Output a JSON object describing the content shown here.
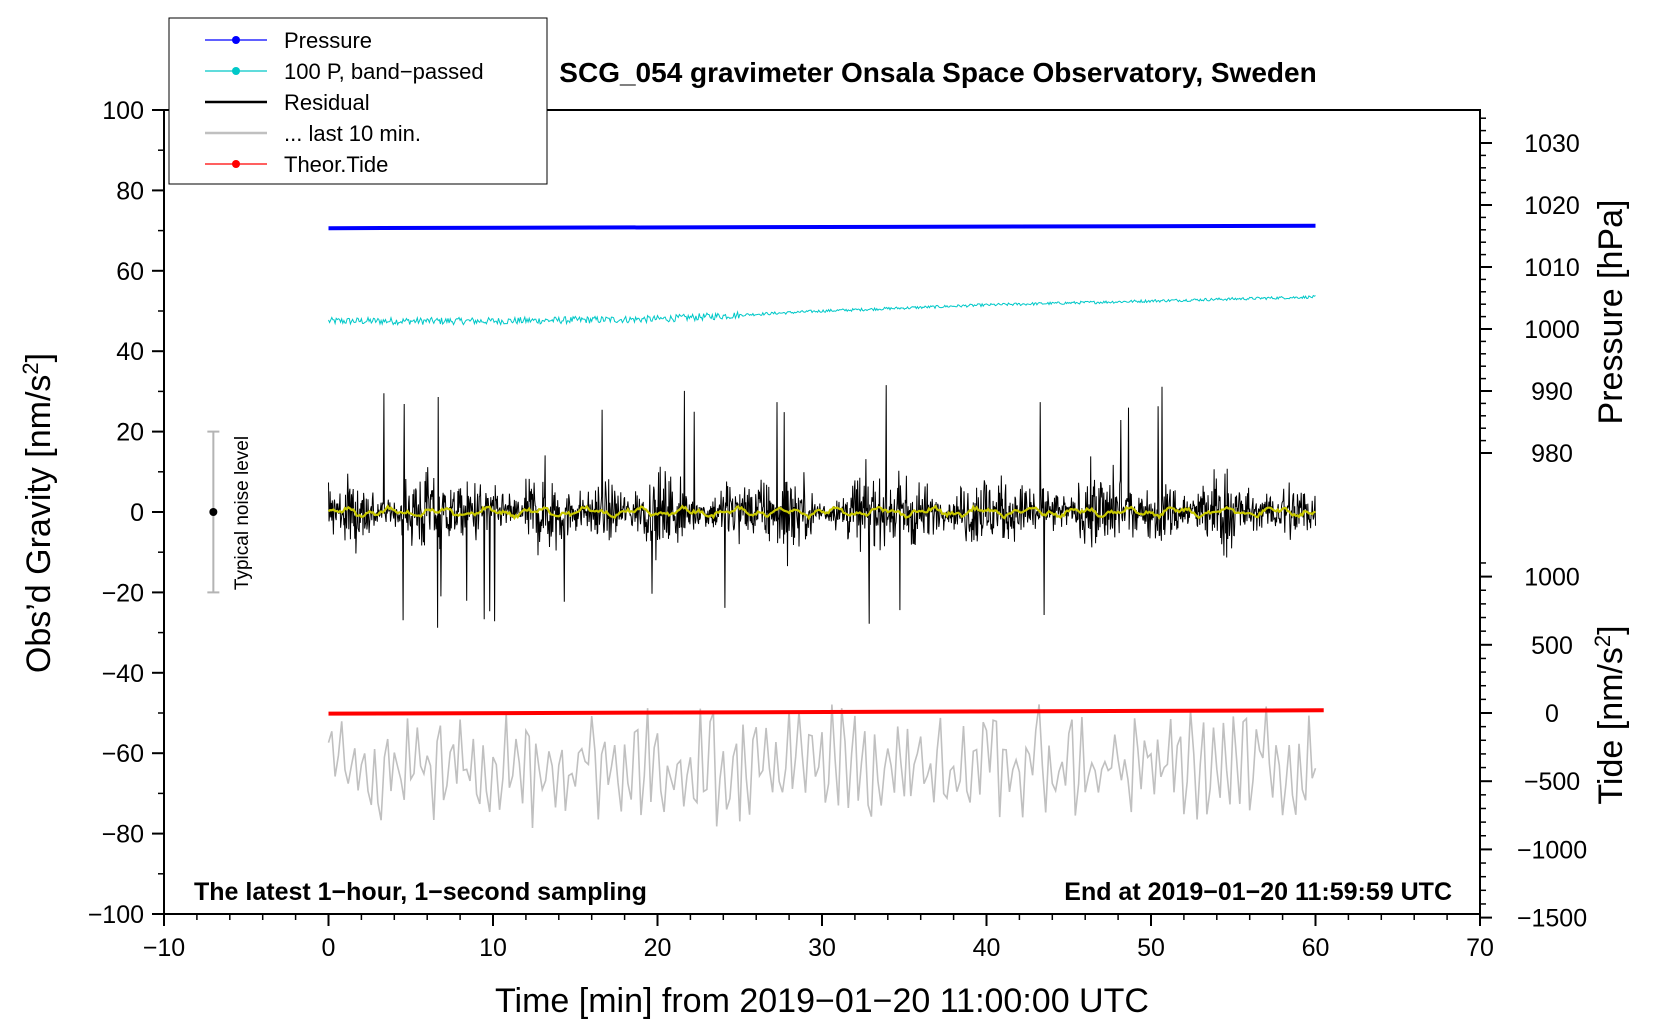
{
  "chart_data": {
    "type": "line",
    "title": "SCG_054 gravimeter Onsala Space Observatory, Sweden",
    "xlabel": "Time [min] from 2019−01−20 11:00:00 UTC",
    "ylabel_left": "Obs’d Gravity [nm/s2]",
    "ylabel_left_parts": [
      "Obs’d Gravity [nm/s",
      "2",
      "]"
    ],
    "ylabel_right_pressure": "Pressure [hPa]",
    "ylabel_right_tide": "Tide [nm/s2]",
    "ylabel_right_tide_parts": [
      "Tide [nm/s",
      "2",
      "]"
    ],
    "xlim": [
      -10,
      70
    ],
    "ylim_left": [
      -100,
      100
    ],
    "x_ticks": [
      -10,
      0,
      10,
      20,
      30,
      40,
      50,
      60,
      70
    ],
    "x_tick_labels": [
      "−10",
      "0",
      "10",
      "20",
      "30",
      "40",
      "50",
      "60",
      "70"
    ],
    "y_ticks_left": [
      -100,
      -80,
      -60,
      -40,
      -20,
      0,
      20,
      40,
      60,
      80,
      100
    ],
    "y_tick_labels_left": [
      "−100",
      "−80",
      "−60",
      "−40",
      "−20",
      "0",
      "20",
      "40",
      "60",
      "80",
      "100"
    ],
    "pressure_ticks": [
      980,
      990,
      1000,
      1010,
      1020,
      1030
    ],
    "pressure_tick_labels": [
      "980",
      "990",
      "1000",
      "1010",
      "1020",
      "1030"
    ],
    "tide_ticks": [
      -1500,
      -1000,
      -500,
      0,
      500,
      1000
    ],
    "tide_tick_labels": [
      "−1500",
      "−1000",
      "−500",
      "0",
      "500",
      "1000"
    ],
    "legend": {
      "position": "top-left",
      "entries": [
        {
          "label": "Pressure",
          "color": "#0000ff",
          "marker": true
        },
        {
          "label": "100 P, band−passed",
          "color": "#00c8c8",
          "marker": true
        },
        {
          "label": "Residual",
          "color": "#000000",
          "marker": false
        },
        {
          "label": "... last 10 min.",
          "color": "#c0c0c0",
          "marker": false
        },
        {
          "label": "Theor.Tide",
          "color": "#ff0000",
          "marker": true
        }
      ]
    },
    "noise_level": {
      "label": "Typical noise level",
      "x": -7,
      "center": 0,
      "half_range": 20
    },
    "footer_left": "The latest 1−hour, 1−second sampling",
    "footer_right": "End at 2019−01−20 11:59:59 UTC",
    "series": [
      {
        "name": "Pressure",
        "color": "#0000ff",
        "axis": "left",
        "x": [
          0,
          60
        ],
        "y": [
          70.6,
          71.2
        ]
      },
      {
        "name": "100 P, band-passed",
        "color": "#00c8c8",
        "axis": "left",
        "x": [
          0,
          10,
          20,
          30,
          40,
          50,
          60
        ],
        "y": [
          47.5,
          47.5,
          48.0,
          50.0,
          51.5,
          52.5,
          53.5
        ]
      },
      {
        "name": "Residual",
        "color": "#000000",
        "axis": "left",
        "x": [
          0,
          60
        ],
        "y_mean": 0,
        "y_range": [
          -29,
          32
        ]
      },
      {
        "name": "Residual (smoothed)",
        "color": "#c8c800",
        "axis": "left",
        "x": [
          0,
          60
        ],
        "y": [
          0,
          0
        ]
      },
      {
        "name": "Theor.Tide",
        "color": "#ff0000",
        "axis": "tide",
        "x": [
          0,
          60.5
        ],
        "y": [
          -5,
          20
        ]
      },
      {
        "name": "... last 10 min.",
        "color": "#c0c0c0",
        "axis": "left",
        "x": [
          0,
          60
        ],
        "y_mean": -63,
        "y_range": [
          -79,
          -45
        ]
      }
    ]
  }
}
